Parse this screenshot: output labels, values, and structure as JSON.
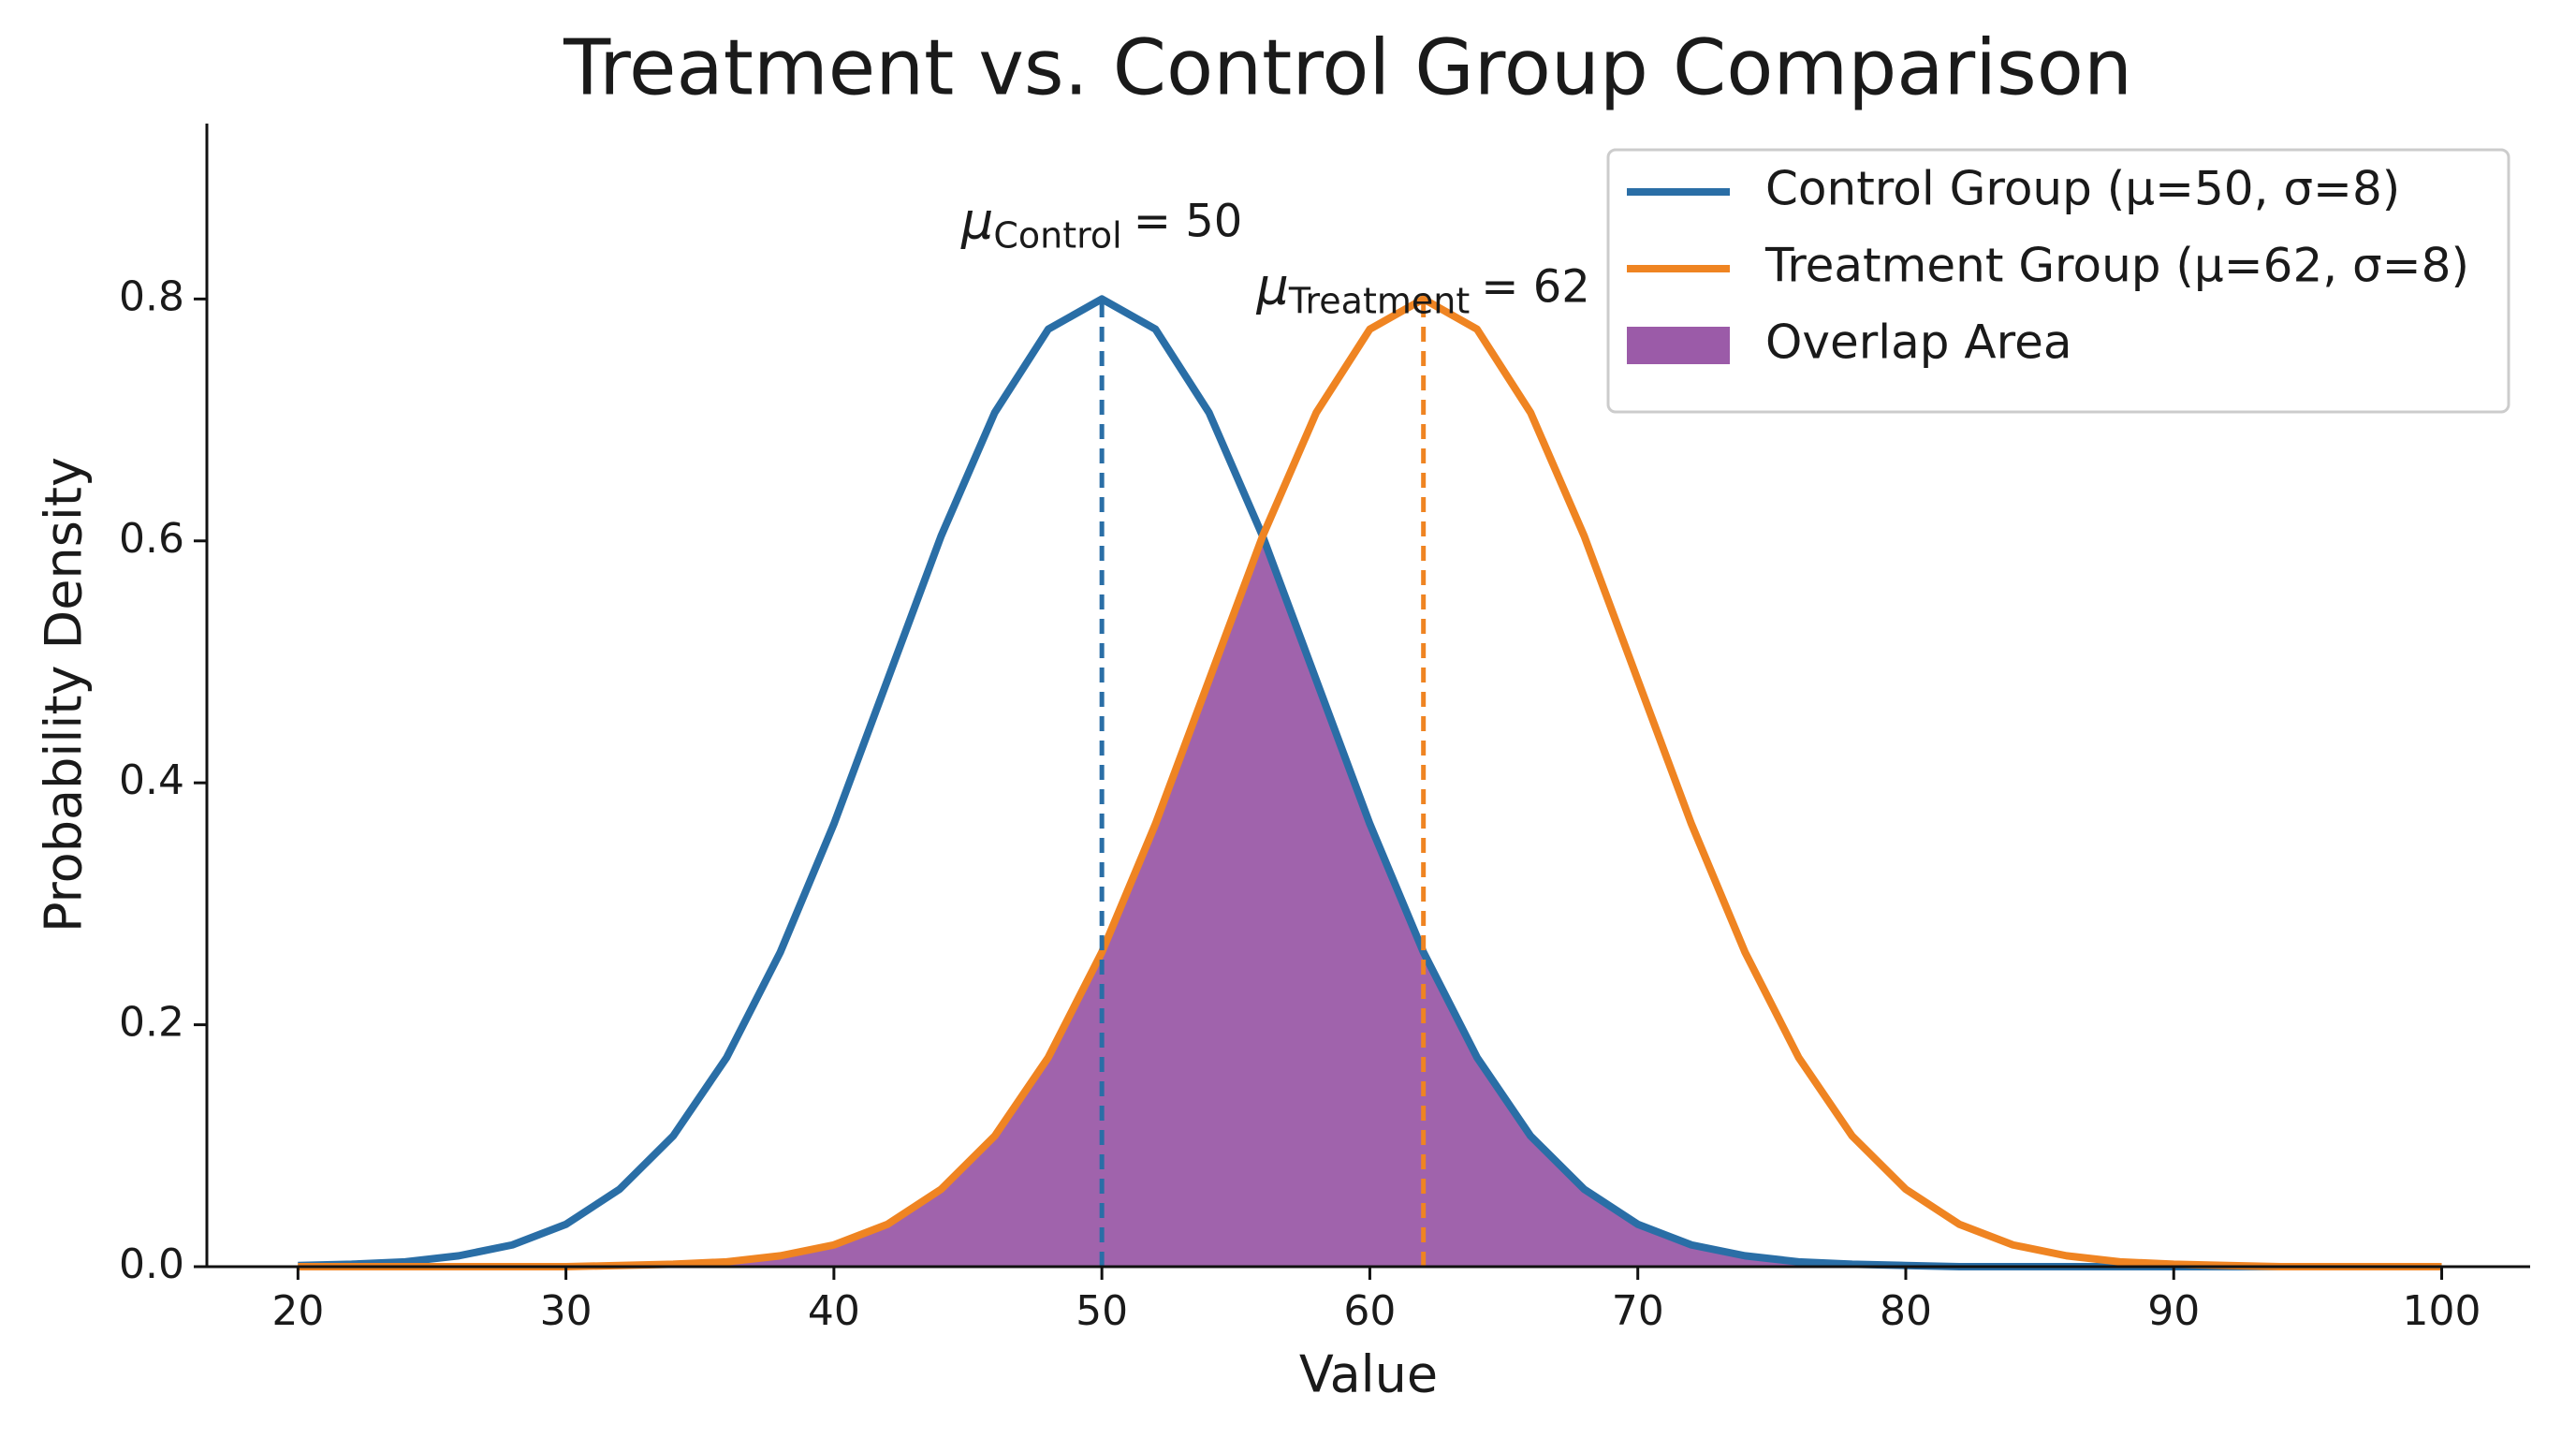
{
  "chart_data": {
    "type": "line",
    "title": "Treatment vs. Control Group Comparison",
    "x_label": "Value",
    "y_label": "Probability Density",
    "x": [
      20,
      22,
      24,
      26,
      28,
      30,
      32,
      34,
      36,
      38,
      40,
      42,
      44,
      46,
      48,
      50,
      52,
      54,
      56,
      58,
      60,
      62,
      64,
      66,
      68,
      70,
      72,
      74,
      76,
      78,
      80,
      82,
      84,
      86,
      88,
      90,
      92,
      94,
      96,
      98,
      100
    ],
    "series": [
      {
        "name": "Control Group (μ=50, σ=8)",
        "color": "#2a6ea6",
        "type": "line",
        "values": [
          0.001,
          0.002,
          0.004,
          0.009,
          0.018,
          0.035,
          0.064,
          0.108,
          0.173,
          0.26,
          0.366,
          0.485,
          0.604,
          0.706,
          0.775,
          0.8,
          0.775,
          0.706,
          0.604,
          0.485,
          0.366,
          0.26,
          0.173,
          0.108,
          0.064,
          0.035,
          0.018,
          0.009,
          0.004,
          0.002,
          0.001,
          0,
          0,
          0,
          0,
          0,
          0,
          0,
          0,
          0,
          0
        ]
      },
      {
        "name": "Treatment Group (μ=62, σ=8)",
        "color": "#ef8422",
        "type": "line",
        "values": [
          0,
          0,
          0,
          0,
          0,
          0,
          0.001,
          0.002,
          0.004,
          0.009,
          0.018,
          0.035,
          0.064,
          0.108,
          0.173,
          0.26,
          0.366,
          0.485,
          0.604,
          0.706,
          0.775,
          0.8,
          0.775,
          0.706,
          0.604,
          0.485,
          0.366,
          0.26,
          0.173,
          0.108,
          0.064,
          0.035,
          0.018,
          0.009,
          0.004,
          0.002,
          0.001,
          0,
          0,
          0,
          0
        ]
      },
      {
        "name": "Overlap Area",
        "color": "#9b5ba8",
        "type": "area",
        "values": [
          0,
          0,
          0,
          0,
          0,
          0,
          0.001,
          0.002,
          0.004,
          0.009,
          0.018,
          0.035,
          0.064,
          0.108,
          0.173,
          0.26,
          0.366,
          0.485,
          0.604,
          0.485,
          0.366,
          0.26,
          0.173,
          0.108,
          0.064,
          0.035,
          0.018,
          0.009,
          0.004,
          0.002,
          0.001,
          0,
          0,
          0,
          0,
          0,
          0,
          0,
          0,
          0,
          0
        ]
      }
    ],
    "mean_lines": [
      {
        "x": 50,
        "y": 0.8,
        "color": "#2a6ea6",
        "symbol": "μ",
        "subscript": "Control",
        "text": "= 50"
      },
      {
        "x": 62,
        "y": 0.8,
        "color": "#ef8422",
        "symbol": "μ",
        "subscript": "Treatment",
        "text": "= 62"
      }
    ],
    "xlim": [
      16.6,
      103.3
    ],
    "ylim": [
      0,
      0.945
    ],
    "xticks": [
      20,
      30,
      40,
      50,
      60,
      70,
      80,
      90,
      100
    ],
    "yticks": [
      {
        "value": 0,
        "label": "0.0"
      },
      0.2,
      0.4,
      0.6,
      0.8
    ],
    "grid": false,
    "legend": "upper right"
  }
}
